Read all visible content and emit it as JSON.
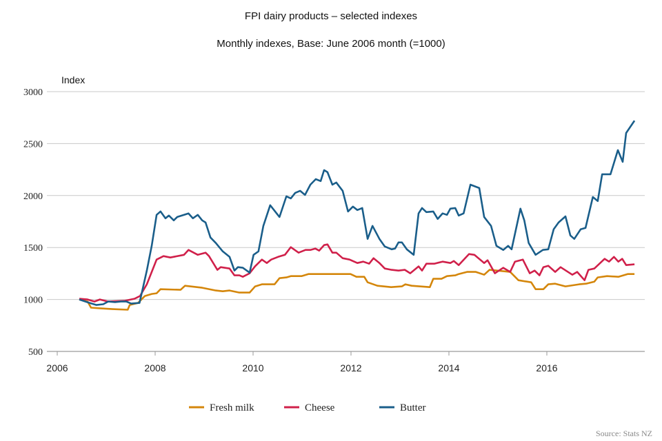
{
  "chart_data": {
    "type": "line",
    "title": "FPI dairy products – selected indexes",
    "subtitle": "Monthly indexes, Base: June 2006 month (=1000)",
    "ylabel": "Index",
    "xlabel": "",
    "xlim": [
      2006,
      2017.95
    ],
    "ylim": [
      500,
      3000
    ],
    "grid": true,
    "legend_position": "bottom-center",
    "source": "Source: Stats NZ",
    "y_ticks": [
      "500",
      "1000",
      "1500",
      "2000",
      "2500",
      "3000"
    ],
    "x_ticks": [
      "2006",
      "2008",
      "2010",
      "2012",
      "2014",
      "2016"
    ],
    "series": [
      {
        "name": "Fresh milk",
        "color": "#d4860b",
        "points": [
          [
            2006.45,
            1000
          ],
          [
            2006.62,
            980
          ],
          [
            2006.69,
            921
          ],
          [
            2006.9,
            914
          ],
          [
            2007.13,
            907
          ],
          [
            2007.44,
            901
          ],
          [
            2007.48,
            947
          ],
          [
            2007.65,
            967
          ],
          [
            2007.79,
            1033
          ],
          [
            2007.93,
            1053
          ],
          [
            2008.03,
            1060
          ],
          [
            2008.11,
            1099
          ],
          [
            2008.52,
            1093
          ],
          [
            2008.61,
            1132
          ],
          [
            2008.96,
            1113
          ],
          [
            2009.24,
            1086
          ],
          [
            2009.38,
            1079
          ],
          [
            2009.52,
            1086
          ],
          [
            2009.72,
            1066
          ],
          [
            2009.93,
            1066
          ],
          [
            2010.04,
            1125
          ],
          [
            2010.18,
            1146
          ],
          [
            2010.44,
            1146
          ],
          [
            2010.54,
            1205
          ],
          [
            2010.68,
            1212
          ],
          [
            2010.77,
            1225
          ],
          [
            2010.99,
            1225
          ],
          [
            2011.13,
            1245
          ],
          [
            2011.49,
            1245
          ],
          [
            2011.99,
            1245
          ],
          [
            2012.11,
            1218
          ],
          [
            2012.27,
            1218
          ],
          [
            2012.34,
            1165
          ],
          [
            2012.54,
            1132
          ],
          [
            2012.82,
            1119
          ],
          [
            2013.04,
            1126
          ],
          [
            2013.11,
            1146
          ],
          [
            2013.24,
            1132
          ],
          [
            2013.61,
            1119
          ],
          [
            2013.68,
            1199
          ],
          [
            2013.85,
            1199
          ],
          [
            2013.96,
            1225
          ],
          [
            2014.13,
            1232
          ],
          [
            2014.2,
            1245
          ],
          [
            2014.37,
            1265
          ],
          [
            2014.55,
            1265
          ],
          [
            2014.72,
            1238
          ],
          [
            2014.83,
            1285
          ],
          [
            2015.25,
            1265
          ],
          [
            2015.42,
            1185
          ],
          [
            2015.68,
            1165
          ],
          [
            2015.77,
            1099
          ],
          [
            2015.93,
            1099
          ],
          [
            2016.03,
            1146
          ],
          [
            2016.17,
            1152
          ],
          [
            2016.38,
            1126
          ],
          [
            2016.66,
            1146
          ],
          [
            2016.8,
            1152
          ],
          [
            2016.97,
            1172
          ],
          [
            2017.04,
            1212
          ],
          [
            2017.23,
            1225
          ],
          [
            2017.46,
            1218
          ],
          [
            2017.65,
            1245
          ],
          [
            2017.79,
            1245
          ]
        ]
      },
      {
        "name": "Cheese",
        "color": "#d0204a",
        "points": [
          [
            2006.45,
            1007
          ],
          [
            2006.62,
            1000
          ],
          [
            2006.76,
            980
          ],
          [
            2006.87,
            1000
          ],
          [
            2007.04,
            980
          ],
          [
            2007.37,
            987
          ],
          [
            2007.58,
            1007
          ],
          [
            2007.69,
            1033
          ],
          [
            2007.83,
            1146
          ],
          [
            2008.03,
            1384
          ],
          [
            2008.17,
            1417
          ],
          [
            2008.31,
            1404
          ],
          [
            2008.59,
            1430
          ],
          [
            2008.68,
            1477
          ],
          [
            2008.87,
            1430
          ],
          [
            2009.03,
            1450
          ],
          [
            2009.1,
            1417
          ],
          [
            2009.27,
            1285
          ],
          [
            2009.34,
            1311
          ],
          [
            2009.52,
            1298
          ],
          [
            2009.62,
            1232
          ],
          [
            2009.72,
            1232
          ],
          [
            2009.79,
            1218
          ],
          [
            2009.93,
            1252
          ],
          [
            2010.04,
            1318
          ],
          [
            2010.18,
            1384
          ],
          [
            2010.28,
            1351
          ],
          [
            2010.37,
            1384
          ],
          [
            2010.51,
            1410
          ],
          [
            2010.65,
            1430
          ],
          [
            2010.77,
            1503
          ],
          [
            2010.93,
            1450
          ],
          [
            2011.07,
            1477
          ],
          [
            2011.17,
            1477
          ],
          [
            2011.27,
            1490
          ],
          [
            2011.35,
            1470
          ],
          [
            2011.45,
            1523
          ],
          [
            2011.52,
            1530
          ],
          [
            2011.62,
            1450
          ],
          [
            2011.7,
            1450
          ],
          [
            2011.83,
            1397
          ],
          [
            2011.97,
            1384
          ],
          [
            2012.13,
            1351
          ],
          [
            2012.25,
            1364
          ],
          [
            2012.37,
            1344
          ],
          [
            2012.46,
            1397
          ],
          [
            2012.58,
            1351
          ],
          [
            2012.69,
            1298
          ],
          [
            2012.83,
            1285
          ],
          [
            2012.97,
            1278
          ],
          [
            2013.1,
            1285
          ],
          [
            2013.21,
            1252
          ],
          [
            2013.38,
            1318
          ],
          [
            2013.45,
            1278
          ],
          [
            2013.54,
            1344
          ],
          [
            2013.7,
            1344
          ],
          [
            2013.87,
            1364
          ],
          [
            2014.03,
            1351
          ],
          [
            2014.1,
            1370
          ],
          [
            2014.2,
            1331
          ],
          [
            2014.41,
            1437
          ],
          [
            2014.52,
            1430
          ],
          [
            2014.72,
            1351
          ],
          [
            2014.79,
            1377
          ],
          [
            2014.94,
            1252
          ],
          [
            2015.11,
            1305
          ],
          [
            2015.25,
            1265
          ],
          [
            2015.35,
            1364
          ],
          [
            2015.51,
            1384
          ],
          [
            2015.65,
            1252
          ],
          [
            2015.75,
            1278
          ],
          [
            2015.85,
            1232
          ],
          [
            2015.93,
            1311
          ],
          [
            2016.03,
            1324
          ],
          [
            2016.17,
            1265
          ],
          [
            2016.28,
            1311
          ],
          [
            2016.52,
            1238
          ],
          [
            2016.62,
            1265
          ],
          [
            2016.77,
            1185
          ],
          [
            2016.85,
            1285
          ],
          [
            2016.97,
            1298
          ],
          [
            2017.18,
            1391
          ],
          [
            2017.27,
            1364
          ],
          [
            2017.37,
            1410
          ],
          [
            2017.46,
            1364
          ],
          [
            2017.54,
            1391
          ],
          [
            2017.62,
            1331
          ],
          [
            2017.79,
            1338
          ]
        ]
      },
      {
        "name": "Butter",
        "color": "#1a5e8a",
        "points": [
          [
            2006.45,
            1000
          ],
          [
            2006.66,
            967
          ],
          [
            2006.8,
            947
          ],
          [
            2006.94,
            954
          ],
          [
            2007.04,
            980
          ],
          [
            2007.18,
            974
          ],
          [
            2007.3,
            980
          ],
          [
            2007.41,
            980
          ],
          [
            2007.51,
            960
          ],
          [
            2007.68,
            967
          ],
          [
            2007.75,
            1113
          ],
          [
            2007.83,
            1278
          ],
          [
            2007.93,
            1516
          ],
          [
            2008.03,
            1814
          ],
          [
            2008.11,
            1847
          ],
          [
            2008.21,
            1781
          ],
          [
            2008.28,
            1808
          ],
          [
            2008.38,
            1761
          ],
          [
            2008.45,
            1794
          ],
          [
            2008.68,
            1828
          ],
          [
            2008.77,
            1781
          ],
          [
            2008.87,
            1814
          ],
          [
            2008.96,
            1761
          ],
          [
            2009.03,
            1741
          ],
          [
            2009.13,
            1596
          ],
          [
            2009.24,
            1543
          ],
          [
            2009.38,
            1463
          ],
          [
            2009.52,
            1410
          ],
          [
            2009.62,
            1278
          ],
          [
            2009.69,
            1311
          ],
          [
            2009.79,
            1305
          ],
          [
            2009.93,
            1258
          ],
          [
            2010.01,
            1430
          ],
          [
            2010.11,
            1463
          ],
          [
            2010.21,
            1708
          ],
          [
            2010.35,
            1907
          ],
          [
            2010.54,
            1794
          ],
          [
            2010.68,
            1993
          ],
          [
            2010.77,
            1973
          ],
          [
            2010.86,
            2026
          ],
          [
            2010.96,
            2046
          ],
          [
            2011.06,
            2006
          ],
          [
            2011.17,
            2105
          ],
          [
            2011.28,
            2158
          ],
          [
            2011.38,
            2139
          ],
          [
            2011.45,
            2245
          ],
          [
            2011.52,
            2225
          ],
          [
            2011.62,
            2105
          ],
          [
            2011.7,
            2125
          ],
          [
            2011.83,
            2046
          ],
          [
            2011.94,
            1847
          ],
          [
            2012.04,
            1894
          ],
          [
            2012.13,
            1861
          ],
          [
            2012.23,
            1880
          ],
          [
            2012.34,
            1583
          ],
          [
            2012.44,
            1708
          ],
          [
            2012.58,
            1583
          ],
          [
            2012.69,
            1510
          ],
          [
            2012.83,
            1483
          ],
          [
            2012.9,
            1490
          ],
          [
            2012.97,
            1549
          ],
          [
            2013.04,
            1549
          ],
          [
            2013.14,
            1483
          ],
          [
            2013.28,
            1430
          ],
          [
            2013.38,
            1828
          ],
          [
            2013.45,
            1880
          ],
          [
            2013.54,
            1841
          ],
          [
            2013.68,
            1847
          ],
          [
            2013.77,
            1775
          ],
          [
            2013.87,
            1828
          ],
          [
            2013.96,
            1814
          ],
          [
            2014.03,
            1874
          ],
          [
            2014.13,
            1880
          ],
          [
            2014.2,
            1808
          ],
          [
            2014.3,
            1828
          ],
          [
            2014.44,
            2105
          ],
          [
            2014.62,
            2072
          ],
          [
            2014.72,
            1794
          ],
          [
            2014.86,
            1708
          ],
          [
            2014.97,
            1516
          ],
          [
            2015.11,
            1477
          ],
          [
            2015.21,
            1516
          ],
          [
            2015.28,
            1483
          ],
          [
            2015.46,
            1874
          ],
          [
            2015.54,
            1761
          ],
          [
            2015.63,
            1543
          ],
          [
            2015.77,
            1430
          ],
          [
            2015.92,
            1477
          ],
          [
            2016.03,
            1483
          ],
          [
            2016.14,
            1675
          ],
          [
            2016.24,
            1741
          ],
          [
            2016.38,
            1800
          ],
          [
            2016.48,
            1616
          ],
          [
            2016.56,
            1583
          ],
          [
            2016.69,
            1675
          ],
          [
            2016.79,
            1688
          ],
          [
            2016.94,
            1986
          ],
          [
            2017.04,
            1947
          ],
          [
            2017.13,
            2205
          ],
          [
            2017.3,
            2205
          ],
          [
            2017.45,
            2437
          ],
          [
            2017.55,
            2324
          ],
          [
            2017.62,
            2602
          ],
          [
            2017.79,
            2721
          ]
        ]
      }
    ]
  }
}
